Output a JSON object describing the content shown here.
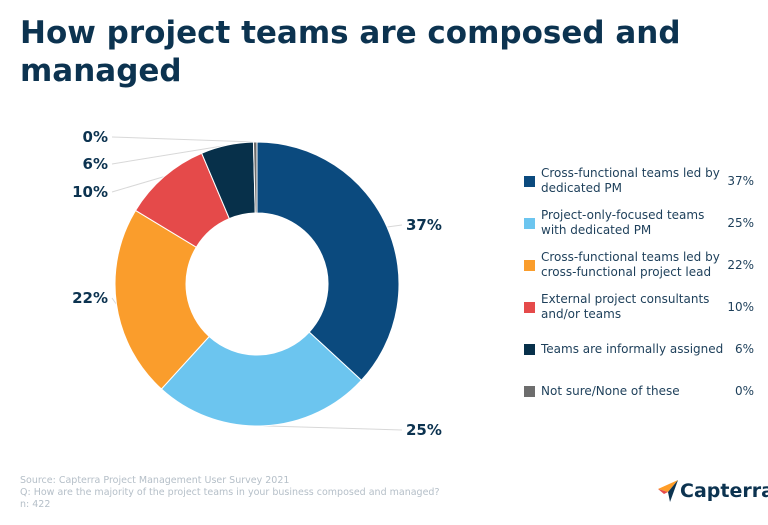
{
  "title": "How project teams are composed and managed",
  "chart_data": {
    "type": "pie",
    "donut": true,
    "categories": [
      "Cross-functional teams led by dedicated PM",
      "Project-only-focused teams with dedicated PM",
      "Cross-functional teams led by cross-functional project lead",
      "External project consultants and/or teams",
      "Teams are informally assigned",
      "Not sure/None of these"
    ],
    "values": [
      37,
      25,
      22,
      10,
      6,
      0
    ],
    "labels": [
      "37%",
      "25%",
      "22%",
      "10%",
      "6%",
      "0%"
    ],
    "colors": [
      "#0b4a7e",
      "#6cc5ef",
      "#fa9d2c",
      "#e54a4a",
      "#07304a",
      "#6d6d6d"
    ],
    "legend_position": "right"
  },
  "footer": {
    "source": "Source: Capterra Project Management User Survey 2021",
    "question": "Q: How are the majority of the project teams in your business composed and managed?",
    "n": "n: 422"
  },
  "logo": "Capterra"
}
